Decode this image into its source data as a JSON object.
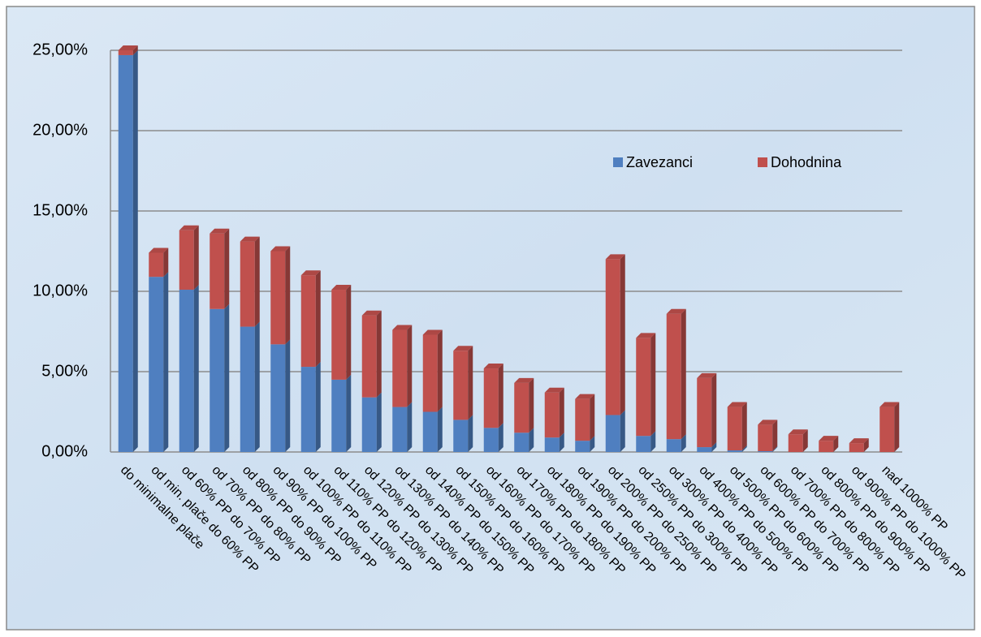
{
  "chart_data": {
    "type": "stacked_bar",
    "categories": [
      "do minimalne plače",
      "od min. plače do 60% PP",
      "od 60% PP do 70% PP",
      "od 70% PP do 80% PP",
      "od 80% PP do 90% PP",
      "od 90% PP do 100% PP",
      "od 100% PP do 110% PP",
      "od 110% PP do 120% PP",
      "od 120% PP do 130% PP",
      "od 130% PP do 140% PP",
      "od 140% PP do 150% PP",
      "od 150% PP do 160% PP",
      "od 160% PP do 170% PP",
      "od 170% PP do 180% PP",
      "od 180% PP do 190% PP",
      "od 190% PP do 200% PP",
      "od 200% PP do 250% PP",
      "od 250% PP do 300% PP",
      "od 300% PP do 400% PP",
      "od 400% PP do 500% PP",
      "od 500% PP do 600% PP",
      "od 600% PP do 700% PP",
      "od 700% PP do 800% PP",
      "od 800% PP do 900% PP",
      "od 900% PP do 1000% PP",
      "nad 1000% PP"
    ],
    "series": [
      {
        "name": "Zavezanci",
        "color": "#4f7fc0",
        "values": [
          24.7,
          10.9,
          10.1,
          8.9,
          7.8,
          6.7,
          5.3,
          4.5,
          3.4,
          2.8,
          2.5,
          2.0,
          1.5,
          1.2,
          0.9,
          0.7,
          2.3,
          1.0,
          0.8,
          0.3,
          0.1,
          0.05,
          0,
          0,
          0,
          0
        ]
      },
      {
        "name": "Dohodnina",
        "color": "#c0504d",
        "values": [
          0.3,
          1.5,
          3.7,
          4.7,
          5.3,
          5.8,
          5.7,
          5.6,
          5.1,
          4.8,
          4.8,
          4.3,
          3.7,
          3.1,
          2.8,
          2.6,
          9.7,
          6.1,
          7.8,
          4.3,
          2.7,
          1.65,
          1.1,
          0.7,
          0.55,
          2.8
        ]
      }
    ],
    "ylim": [
      0,
      25
    ],
    "yticks": [
      {
        "value": 0,
        "label": "0,00%"
      },
      {
        "value": 5,
        "label": "5,00%"
      },
      {
        "value": 10,
        "label": "10,00%"
      },
      {
        "value": 15,
        "label": "15,00%"
      },
      {
        "value": 20,
        "label": "20,00%"
      },
      {
        "value": 25,
        "label": "25,00%"
      }
    ],
    "grid": true,
    "legend": "upper right"
  }
}
